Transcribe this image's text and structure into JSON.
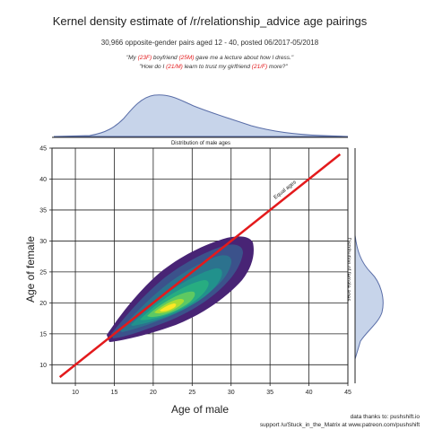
{
  "header": {
    "title": "Kernel density estimate of /r/relationship_advice age pairings",
    "subtitle": "30,966 opposite-gender pairs aged 12 - 40,  posted 06/2017-05/2018",
    "quote1_a": "\"My ",
    "quote1_b": "(23F)",
    "quote1_c": " boyfriend ",
    "quote1_d": "(25M)",
    "quote1_e": " gave me a lecture about how I dress.\"",
    "quote2_a": "\"How do I ",
    "quote2_b": "(21/M)",
    "quote2_c": " learn to trust my girlfriend ",
    "quote2_d": "(21/F)",
    "quote2_e": " more?\""
  },
  "chart_data": {
    "type": "heatmap",
    "title": "Kernel density estimate of /r/relationship_advice age pairings",
    "xlabel": "Age of male",
    "ylabel": "Age of female",
    "xlim": [
      7,
      45
    ],
    "ylim": [
      7,
      45
    ],
    "xticks": [
      10,
      15,
      20,
      25,
      30,
      35,
      40,
      45
    ],
    "yticks": [
      10,
      15,
      20,
      25,
      30,
      35,
      40,
      45
    ],
    "grid": true,
    "equal_ages_line": {
      "label": "Equal ages",
      "x": [
        8,
        44
      ],
      "y": [
        8,
        44
      ],
      "color": "#e31a1c"
    },
    "density_peak": {
      "male_age": 21.5,
      "female_age": 20
    },
    "marginals": {
      "top_label": "Distribution of male ages",
      "right_label": "Distribution of female ages",
      "male_mode": 22,
      "female_mode": 19
    }
  },
  "credits": {
    "line1": "data thanks to: pushshift.io",
    "line2": "support /u/Stuck_in_the_Matrix at www.patreon.com/pushshift"
  },
  "colors": {
    "red": "#e31a1c",
    "marginal_fill": "#c7d4ea",
    "marginal_stroke": "#5a6ea8"
  }
}
